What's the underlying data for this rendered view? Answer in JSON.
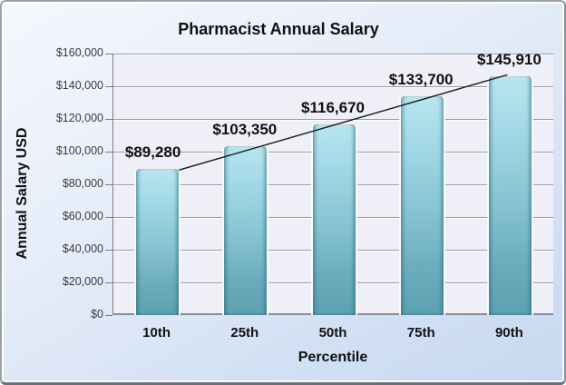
{
  "chart": {
    "title": "Pharmacist Annual Salary",
    "y_axis_title": "Annual Salary USD",
    "x_axis_title": "Percentile"
  },
  "chart_data": {
    "type": "bar",
    "title": "Pharmacist Annual Salary",
    "xlabel": "Percentile",
    "ylabel": "Annual Salary USD",
    "categories": [
      "10th",
      "25th",
      "50th",
      "75th",
      "90th"
    ],
    "values": [
      89280,
      103350,
      116670,
      133700,
      145910
    ],
    "data_labels": [
      "$89,280",
      "$103,350",
      "$116,670",
      "$133,700",
      "$145,910"
    ],
    "ylim": [
      0,
      160000
    ],
    "ytick_step": 20000,
    "ytick_labels": [
      "$0",
      "$20,000",
      "$40,000",
      "$60,000",
      "$80,000",
      "$100,000",
      "$120,000",
      "$140,000",
      "$160,000"
    ],
    "grid": true,
    "legend_position": "none",
    "trendline": true,
    "colors": {
      "bar_top": "#b7e5f0",
      "bar_bottom": "#5da1b1",
      "bar_edge": "#4f8d9d",
      "plot_background": "#efeff8",
      "gridline": "#9a9aa6",
      "frame_background_top": "#f5f8fd",
      "frame_background_bottom": "#c7d8f0",
      "trendline": "#1a1a1a",
      "text": "#111111"
    }
  }
}
